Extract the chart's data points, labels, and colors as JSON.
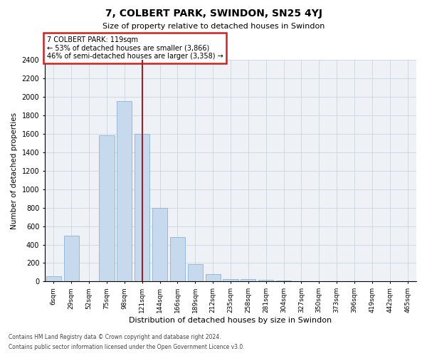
{
  "title": "7, COLBERT PARK, SWINDON, SN25 4YJ",
  "subtitle": "Size of property relative to detached houses in Swindon",
  "xlabel": "Distribution of detached houses by size in Swindon",
  "ylabel": "Number of detached properties",
  "footnote1": "Contains HM Land Registry data © Crown copyright and database right 2024.",
  "footnote2": "Contains public sector information licensed under the Open Government Licence v3.0.",
  "categories": [
    "6sqm",
    "29sqm",
    "52sqm",
    "75sqm",
    "98sqm",
    "121sqm",
    "144sqm",
    "166sqm",
    "189sqm",
    "212sqm",
    "235sqm",
    "258sqm",
    "281sqm",
    "304sqm",
    "327sqm",
    "350sqm",
    "373sqm",
    "396sqm",
    "419sqm",
    "442sqm",
    "465sqm"
  ],
  "values": [
    60,
    500,
    0,
    1580,
    1950,
    1600,
    800,
    480,
    190,
    80,
    30,
    25,
    20,
    10,
    5,
    5,
    3,
    2,
    2,
    2,
    2
  ],
  "bar_color": "#c6d9ed",
  "bar_edge_color": "#8ab4d4",
  "vline_x_index": 5,
  "vline_color": "#a0202a",
  "annotation_title": "7 COLBERT PARK: 119sqm",
  "annotation_line1": "← 53% of detached houses are smaller (3,866)",
  "annotation_line2": "46% of semi-detached houses are larger (3,358) →",
  "annotation_box_color": "#cc2222",
  "ylim": [
    0,
    2400
  ],
  "yticks": [
    0,
    200,
    400,
    600,
    800,
    1000,
    1200,
    1400,
    1600,
    1800,
    2000,
    2200,
    2400
  ],
  "grid_color": "#d0d8e0",
  "background_color": "#eef2f7"
}
